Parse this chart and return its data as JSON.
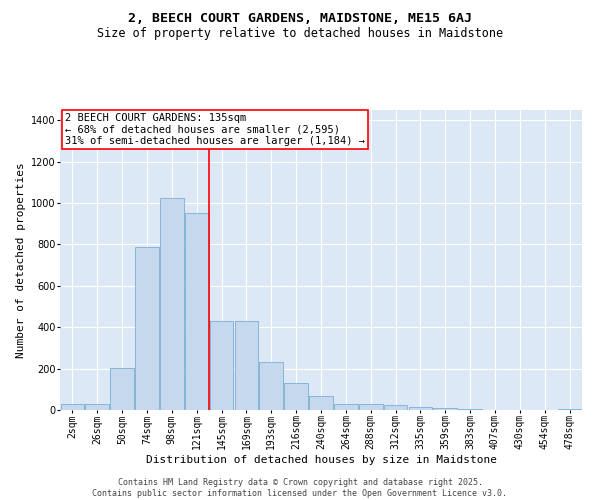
{
  "title_line1": "2, BEECH COURT GARDENS, MAIDSTONE, ME15 6AJ",
  "title_line2": "Size of property relative to detached houses in Maidstone",
  "xlabel": "Distribution of detached houses by size in Maidstone",
  "ylabel": "Number of detached properties",
  "categories": [
    "2sqm",
    "26sqm",
    "50sqm",
    "74sqm",
    "98sqm",
    "121sqm",
    "145sqm",
    "169sqm",
    "193sqm",
    "216sqm",
    "240sqm",
    "264sqm",
    "288sqm",
    "312sqm",
    "335sqm",
    "359sqm",
    "383sqm",
    "407sqm",
    "430sqm",
    "454sqm",
    "478sqm"
  ],
  "bar_values": [
    30,
    30,
    205,
    790,
    1025,
    950,
    430,
    430,
    230,
    130,
    70,
    30,
    30,
    25,
    15,
    10,
    5,
    2,
    2,
    2,
    5
  ],
  "bar_color": "#c5d8ed",
  "bar_edge_color": "#7aafd4",
  "vline_index": 5.5,
  "vline_color": "red",
  "annotation_title": "2 BEECH COURT GARDENS: 135sqm",
  "annotation_line2": "← 68% of detached houses are smaller (2,595)",
  "annotation_line3": "31% of semi-detached houses are larger (1,184) →",
  "ylim": [
    0,
    1450
  ],
  "yticks": [
    0,
    200,
    400,
    600,
    800,
    1000,
    1200,
    1400
  ],
  "background_color": "#dce8f5",
  "grid_color": "#ffffff",
  "footer_line1": "Contains HM Land Registry data © Crown copyright and database right 2025.",
  "footer_line2": "Contains public sector information licensed under the Open Government Licence v3.0.",
  "title_fontsize": 9.5,
  "subtitle_fontsize": 8.5,
  "axis_label_fontsize": 8,
  "tick_fontsize": 7,
  "annotation_fontsize": 7.5,
  "footer_fontsize": 6
}
